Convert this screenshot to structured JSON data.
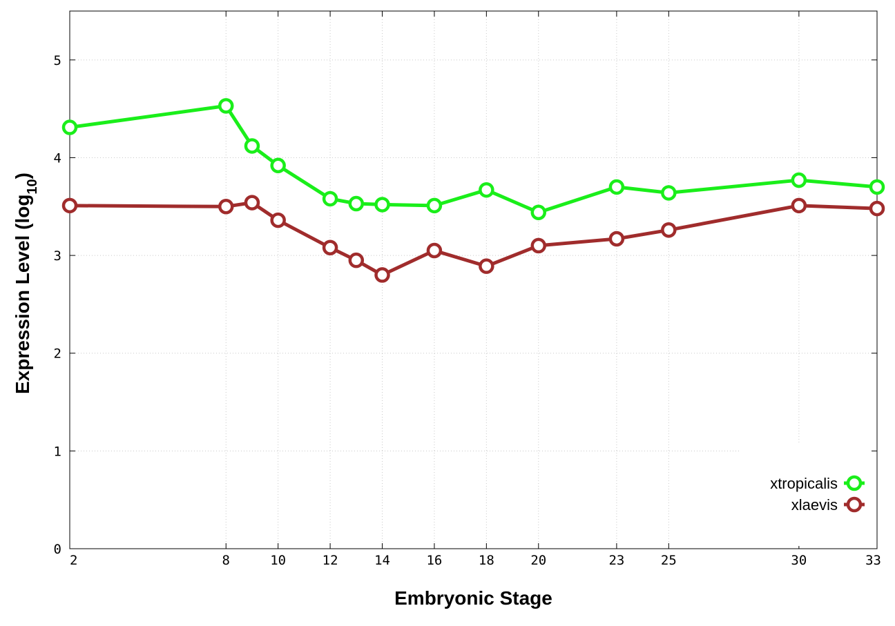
{
  "chart_data": {
    "type": "line",
    "xlabel": "Embryonic Stage",
    "ylabel": "Expression Level (log",
    "ylabel_sub": "10",
    "ylabel_close": ")",
    "xlim": [
      2,
      33
    ],
    "ylim": [
      0,
      5.5
    ],
    "yticks": [
      "0",
      "1",
      "2",
      "3",
      "4",
      "5"
    ],
    "xticks": [
      "2",
      "8",
      "10",
      "12",
      "14",
      "16",
      "18",
      "20",
      "23",
      "25",
      "30",
      "33"
    ],
    "grid": true,
    "legend_position": "bottom-right",
    "x": [
      2,
      8,
      9,
      10,
      12,
      13,
      14,
      16,
      18,
      20,
      23,
      25,
      30,
      33
    ],
    "series": [
      {
        "name": "xtropicalis",
        "color": "#1aee1a",
        "values": [
          4.31,
          4.53,
          4.12,
          3.92,
          3.58,
          3.53,
          3.52,
          3.51,
          3.67,
          3.44,
          3.7,
          3.64,
          3.77,
          3.7
        ]
      },
      {
        "name": "xlaevis",
        "color": "#a02c2c",
        "values": [
          3.51,
          3.5,
          3.54,
          3.36,
          3.08,
          2.95,
          2.8,
          3.05,
          2.89,
          3.1,
          3.17,
          3.26,
          3.51,
          3.48
        ]
      }
    ]
  }
}
